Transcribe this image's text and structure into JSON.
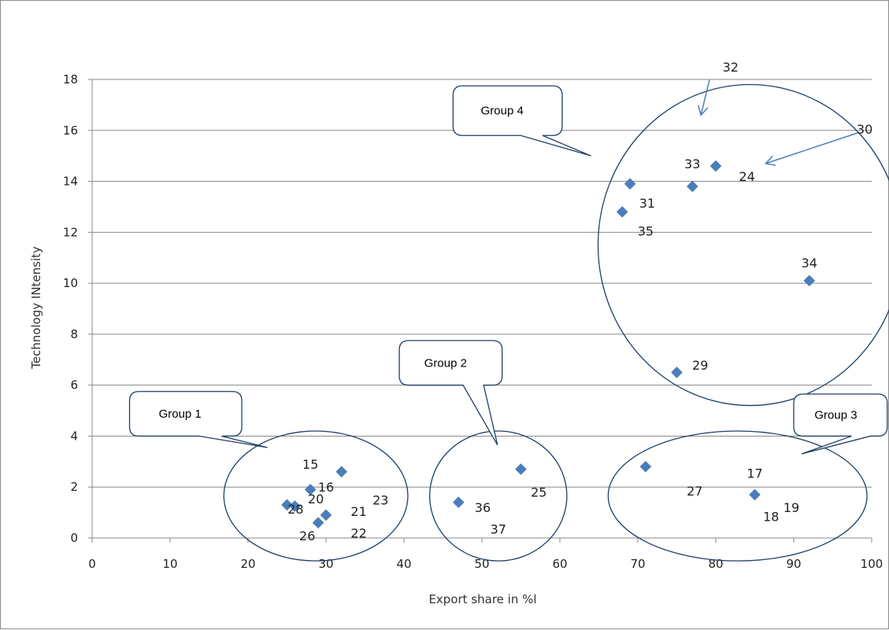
{
  "chart_data": {
    "type": "scatter",
    "title": "",
    "xlabel": "Export share in %l",
    "ylabel": "Technology INtensity",
    "xlim": [
      0,
      100
    ],
    "ylim": [
      0,
      18
    ],
    "x_ticks": [
      0,
      10,
      20,
      30,
      40,
      50,
      60,
      70,
      80,
      90,
      100
    ],
    "y_ticks": [
      0,
      2,
      4,
      6,
      8,
      10,
      12,
      14,
      16,
      18
    ],
    "grid": "horizontal",
    "points": [
      {
        "x": 25,
        "y": 1.3
      },
      {
        "x": 26,
        "y": 1.25
      },
      {
        "x": 28,
        "y": 1.9
      },
      {
        "x": 29,
        "y": 0.6
      },
      {
        "x": 30,
        "y": 0.9
      },
      {
        "x": 32,
        "y": 2.6
      },
      {
        "x": 47,
        "y": 1.4
      },
      {
        "x": 55,
        "y": 2.7
      },
      {
        "x": 71,
        "y": 2.8
      },
      {
        "x": 85,
        "y": 1.7
      },
      {
        "x": 75,
        "y": 6.5
      },
      {
        "x": 92,
        "y": 10.1
      },
      {
        "x": 68,
        "y": 12.8
      },
      {
        "x": 69,
        "y": 13.9
      },
      {
        "x": 77,
        "y": 13.8
      },
      {
        "x": 80,
        "y": 14.6
      }
    ],
    "point_labels": [
      {
        "text": "15",
        "x": 28,
        "y": 2.9
      },
      {
        "text": "16",
        "x": 30,
        "y": 2.0
      },
      {
        "text": "20",
        "x": 28.7,
        "y": 1.55
      },
      {
        "text": "28",
        "x": 26.1,
        "y": 1.15
      },
      {
        "text": "21",
        "x": 34.2,
        "y": 1.05
      },
      {
        "text": "23",
        "x": 37,
        "y": 1.5
      },
      {
        "text": "26",
        "x": 27.6,
        "y": 0.1
      },
      {
        "text": "22",
        "x": 34.2,
        "y": 0.2
      },
      {
        "text": "25",
        "x": 57.3,
        "y": 1.8
      },
      {
        "text": "36",
        "x": 50.1,
        "y": 1.2
      },
      {
        "text": "37",
        "x": 52.1,
        "y": 0.35
      },
      {
        "text": "27",
        "x": 77.3,
        "y": 1.85
      },
      {
        "text": "17",
        "x": 85,
        "y": 2.55
      },
      {
        "text": "18",
        "x": 87.1,
        "y": 0.85
      },
      {
        "text": "19",
        "x": 89.7,
        "y": 1.2
      },
      {
        "text": "29",
        "x": 78,
        "y": 6.8
      },
      {
        "text": "34",
        "x": 92,
        "y": 10.8
      },
      {
        "text": "35",
        "x": 71,
        "y": 12.05
      },
      {
        "text": "31",
        "x": 71.2,
        "y": 13.15
      },
      {
        "text": "33",
        "x": 77,
        "y": 14.7
      },
      {
        "text": "24",
        "x": 84,
        "y": 14.2
      },
      {
        "text": "32",
        "x": 81.9,
        "y": 18.5
      },
      {
        "text": "30",
        "x": 99.1,
        "y": 16.05
      }
    ],
    "groups": [
      {
        "label": "Group 1",
        "cx": 28.7,
        "cy": 1.65,
        "rx": 11.8,
        "ry": 2.55
      },
      {
        "label": "Group 2",
        "cx": 52.1,
        "cy": 1.65,
        "rx": 8.8,
        "ry": 2.55
      },
      {
        "label": "Group 3",
        "cx": 82.8,
        "cy": 1.65,
        "rx": 16.6,
        "ry": 2.55
      },
      {
        "label": "Group 4",
        "cx": 84.4,
        "cy": 11.5,
        "rx": 19.5,
        "ry": 6.3
      }
    ],
    "callouts": [
      {
        "label": "Group 1",
        "x0": 4.8,
        "x1": 19.2,
        "y0": 4.0,
        "y1": 5.75,
        "tail_x": 22.5,
        "tail_y": 3.55
      },
      {
        "label": "Group 2",
        "x0": 39.4,
        "x1": 52.6,
        "y0": 6.0,
        "y1": 7.75,
        "tail_x": 52.0,
        "tail_y": 3.65
      },
      {
        "label": "Group 3",
        "x0": 90.0,
        "x1": 102.0,
        "y0": 4.0,
        "y1": 5.65,
        "tail_x": 91.0,
        "tail_y": 3.3
      },
      {
        "label": "Group 4",
        "x0": 46.3,
        "x1": 60.3,
        "y0": 15.8,
        "y1": 17.75,
        "tail_x": 64.0,
        "tail_y": 15.0
      }
    ],
    "arrows": [
      {
        "x1": 79.2,
        "y1": 18.0,
        "x2": 78.1,
        "y2": 16.6
      },
      {
        "x1": 98.2,
        "y1": 15.9,
        "x2": 86.4,
        "y2": 14.7
      }
    ]
  }
}
